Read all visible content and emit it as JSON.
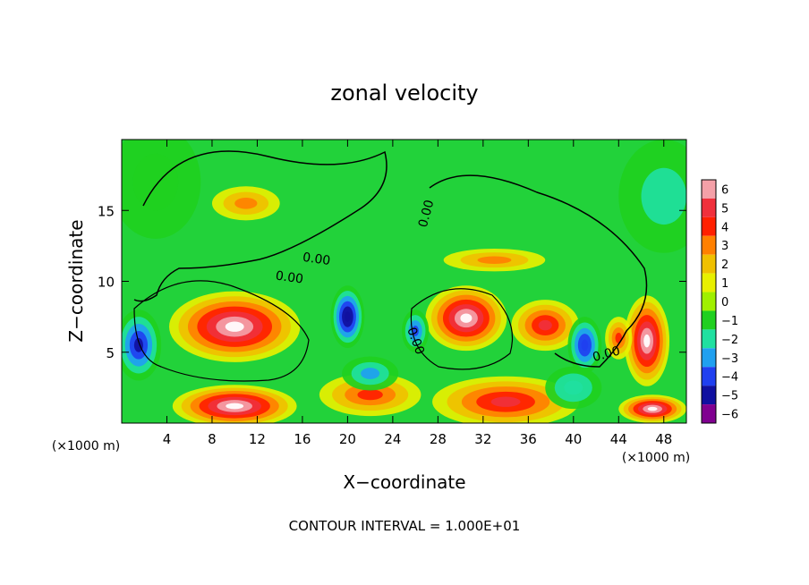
{
  "chart_data": {
    "type": "heatmap",
    "title": "zonal velocity",
    "xlabel": "X−coordinate",
    "ylabel": "Z−coordinate",
    "x_unit_left": "(×1000 m)",
    "x_unit_right": "(×1000 m)",
    "footer": "CONTOUR INTERVAL = 1.000E+01",
    "xlim": [
      0,
      50
    ],
    "ylim": [
      0,
      20
    ],
    "x_ticks": [
      4,
      8,
      12,
      16,
      20,
      24,
      28,
      32,
      36,
      40,
      44,
      48
    ],
    "y_ticks": [
      5,
      10,
      15
    ],
    "colorbar": {
      "range": [
        -6,
        6
      ],
      "ticks": [
        6,
        5,
        4,
        3,
        2,
        1,
        0,
        -1,
        -2,
        -3,
        -4,
        -5,
        -6
      ],
      "tick_labels": [
        "6",
        "5",
        "4",
        "3",
        "2",
        "1",
        "0",
        "−1",
        "−2",
        "−3",
        "−4",
        "−5",
        "−6"
      ],
      "colors": [
        "#f4a0a8",
        "#f0303c",
        "#ff2000",
        "#ff8000",
        "#f0c000",
        "#e8f000",
        "#a0f000",
        "#20d020",
        "#20e0a0",
        "#20a0f0",
        "#2040f0",
        "#1010a0",
        "#800090"
      ]
    },
    "contour_labels": [
      {
        "text": "0.00",
        "x": 17.2,
        "y": 11.3,
        "rotate": 8
      },
      {
        "text": "0.00",
        "x": 14.8,
        "y": 10.0,
        "rotate": 8
      },
      {
        "text": "0.00",
        "x": 27.3,
        "y": 14.7,
        "rotate": -75
      },
      {
        "text": "0.00",
        "x": 25.7,
        "y": 5.7,
        "rotate": 70
      },
      {
        "text": "0.00",
        "x": 43.0,
        "y": 4.6,
        "rotate": -15
      }
    ],
    "features": [
      {
        "x": 10,
        "y": 6.8,
        "rx": 5.8,
        "ry": 2.5,
        "value": 7
      },
      {
        "x": 30.5,
        "y": 7.4,
        "rx": 3.6,
        "ry": 2.3,
        "value": 7
      },
      {
        "x": 37.5,
        "y": 6.9,
        "rx": 3.0,
        "ry": 1.8,
        "value": 5
      },
      {
        "x": 46.5,
        "y": 5.8,
        "rx": 2.0,
        "ry": 3.2,
        "value": 6.5
      },
      {
        "x": 10,
        "y": 1.2,
        "rx": 5.5,
        "ry": 1.5,
        "value": 7
      },
      {
        "x": 34,
        "y": 1.5,
        "rx": 6.5,
        "ry": 1.8,
        "value": 4.5
      },
      {
        "x": 22,
        "y": 2.0,
        "rx": 4.5,
        "ry": 1.5,
        "value": 3.5
      },
      {
        "x": 47,
        "y": 1.0,
        "rx": 3.0,
        "ry": 1.0,
        "value": 6.5
      },
      {
        "x": 20,
        "y": 7.5,
        "rx": 1.5,
        "ry": 2.2,
        "value": -5.5
      },
      {
        "x": 26,
        "y": 6.5,
        "rx": 1.2,
        "ry": 1.5,
        "value": -4
      },
      {
        "x": 41,
        "y": 5.5,
        "rx": 1.5,
        "ry": 2.0,
        "value": -4.5
      },
      {
        "x": 1.5,
        "y": 5.5,
        "rx": 2.0,
        "ry": 2.5,
        "value": -5
      },
      {
        "x": 11,
        "y": 15.5,
        "rx": 3.0,
        "ry": 1.2,
        "value": 3
      },
      {
        "x": 33,
        "y": 11.5,
        "rx": 4.5,
        "ry": 0.8,
        "value": 2.5
      },
      {
        "x": 44,
        "y": 6.0,
        "rx": 1.2,
        "ry": 1.5,
        "value": 4
      },
      {
        "x": 48,
        "y": 16,
        "rx": 4.0,
        "ry": 4.0,
        "value": -2
      },
      {
        "x": 3,
        "y": 17,
        "rx": 4.0,
        "ry": 4.0,
        "value": -1.5
      },
      {
        "x": 22,
        "y": 3.5,
        "rx": 2.5,
        "ry": 1.2,
        "value": -3
      },
      {
        "x": 40,
        "y": 2.5,
        "rx": 2.5,
        "ry": 1.5,
        "value": -2.5
      }
    ]
  }
}
